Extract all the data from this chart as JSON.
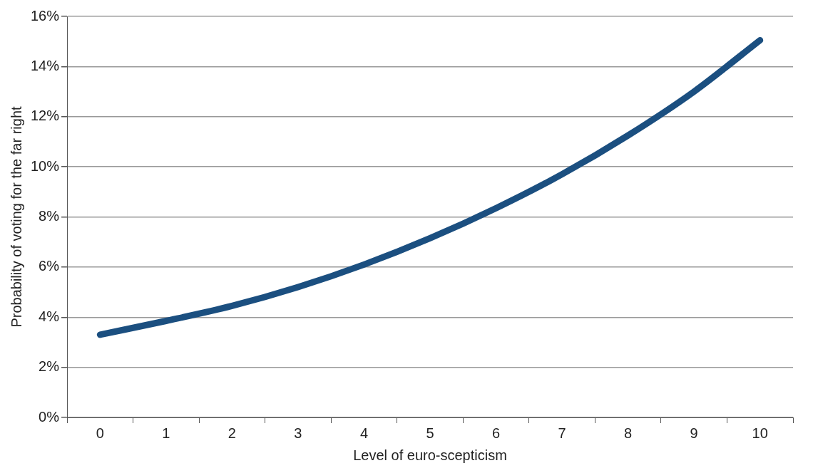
{
  "chart_data": {
    "type": "line",
    "xlabel": "Level of euro-scepticism",
    "ylabel": "Probability of voting for the far right",
    "categories": [
      "0",
      "1",
      "2",
      "3",
      "4",
      "5",
      "6",
      "7",
      "8",
      "9",
      "10"
    ],
    "series": [
      {
        "color": "#1b4f80",
        "values": [
          3.3,
          3.85,
          4.45,
          5.2,
          6.1,
          7.15,
          8.35,
          9.7,
          11.25,
          13.0,
          15.05
        ]
      }
    ],
    "ylim": [
      0,
      16
    ],
    "yticks": [
      {
        "value": 0,
        "label": "0%"
      },
      {
        "value": 2,
        "label": "2%"
      },
      {
        "value": 4,
        "label": "4%"
      },
      {
        "value": 6,
        "label": "6%"
      },
      {
        "value": 8,
        "label": "8%"
      },
      {
        "value": 10,
        "label": "10%"
      },
      {
        "value": 12,
        "label": "12%"
      },
      {
        "value": 14,
        "label": "14%"
      },
      {
        "value": 16,
        "label": "16%"
      }
    ],
    "grid": "y",
    "legend": false,
    "marker": "none",
    "line_style": "solid"
  }
}
